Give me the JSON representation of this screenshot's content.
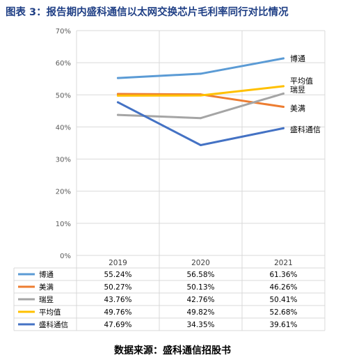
{
  "title": "图表 3：报告期内盛科通信以太网交换芯片毛利率同行对比情况",
  "source": "数据来源：盛科通信招股书",
  "chart_data": {
    "type": "line",
    "title": "",
    "xlabel": "",
    "ylabel": "",
    "ylim": [
      0,
      70
    ],
    "yticks": [
      "0%",
      "10%",
      "20%",
      "30%",
      "40%",
      "50%",
      "60%",
      "70%"
    ],
    "categories": [
      "2019",
      "2020",
      "2021"
    ],
    "grid": true,
    "legend": "data-table",
    "series": [
      {
        "name": "博通",
        "color": "#5b9bd5",
        "values": [
          55.24,
          56.58,
          61.36
        ],
        "labels": [
          "55.24%",
          "56.58%",
          "61.36%"
        ]
      },
      {
        "name": "美满",
        "color": "#ed7d31",
        "values": [
          50.27,
          50.13,
          46.26
        ],
        "labels": [
          "50.27%",
          "50.13%",
          "46.26%"
        ]
      },
      {
        "name": "瑞昱",
        "color": "#a5a5a5",
        "values": [
          43.76,
          42.76,
          50.41
        ],
        "labels": [
          "43.76%",
          "42.76%",
          "50.41%"
        ]
      },
      {
        "name": "平均值",
        "color": "#ffc000",
        "values": [
          49.76,
          49.82,
          52.68
        ],
        "labels": [
          "49.76%",
          "49.82%",
          "52.68%"
        ]
      },
      {
        "name": "盛科通信",
        "color": "#4472c4",
        "values": [
          47.69,
          34.35,
          39.61
        ],
        "labels": [
          "47.69%",
          "34.35%",
          "39.61%"
        ]
      }
    ]
  }
}
